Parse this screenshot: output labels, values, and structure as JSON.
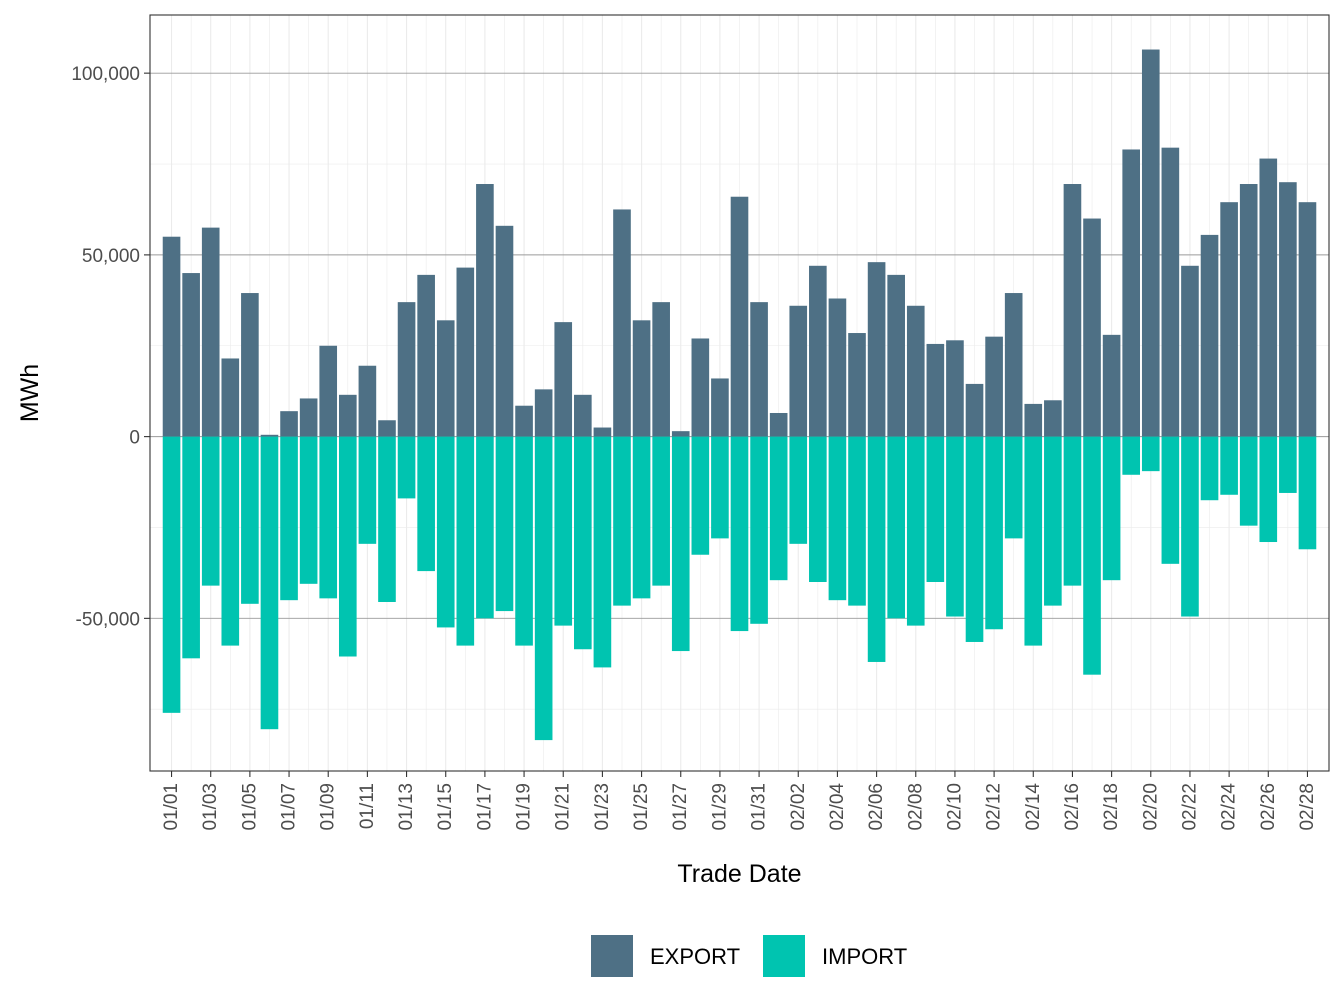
{
  "chart_data": {
    "type": "bar",
    "stacked": true,
    "xlabel": "Trade Date",
    "ylabel": "MWh",
    "ylim": [
      -92000,
      116000
    ],
    "y_ticks": [
      -50000,
      0,
      50000,
      100000
    ],
    "y_tick_labels": [
      "-50,000",
      "0",
      "50,000",
      "100,000"
    ],
    "grid": true,
    "legend_position": "bottom",
    "categories": [
      "01/01",
      "01/02",
      "01/03",
      "01/04",
      "01/05",
      "01/06",
      "01/07",
      "01/08",
      "01/09",
      "01/10",
      "01/11",
      "01/12",
      "01/13",
      "01/14",
      "01/15",
      "01/16",
      "01/17",
      "01/18",
      "01/19",
      "01/20",
      "01/21",
      "01/22",
      "01/23",
      "01/24",
      "01/25",
      "01/26",
      "01/27",
      "01/28",
      "01/29",
      "01/30",
      "01/31",
      "02/01",
      "02/02",
      "02/03",
      "02/04",
      "02/05",
      "02/06",
      "02/07",
      "02/08",
      "02/09",
      "02/10",
      "02/11",
      "02/12",
      "02/13",
      "02/14",
      "02/15",
      "02/16",
      "02/17",
      "02/18",
      "02/19",
      "02/20",
      "02/21",
      "02/22",
      "02/23",
      "02/24",
      "02/25",
      "02/26",
      "02/27",
      "02/28"
    ],
    "x_tick_labels": [
      "01/01",
      "01/03",
      "01/05",
      "01/07",
      "01/09",
      "01/11",
      "01/13",
      "01/15",
      "01/17",
      "01/19",
      "01/21",
      "01/23",
      "01/25",
      "01/27",
      "01/29",
      "01/31",
      "02/02",
      "02/04",
      "02/06",
      "02/08",
      "02/10",
      "02/12",
      "02/14",
      "02/16",
      "02/18",
      "02/20",
      "02/22",
      "02/24",
      "02/26",
      "02/28"
    ],
    "series": [
      {
        "name": "EXPORT",
        "color": "#4e7085",
        "values": [
          55000,
          45000,
          57500,
          21500,
          39500,
          500,
          7000,
          10500,
          25000,
          11500,
          19500,
          4500,
          37000,
          44500,
          32000,
          46500,
          69500,
          58000,
          8500,
          13000,
          31500,
          11500,
          2500,
          62500,
          32000,
          37000,
          1500,
          27000,
          16000,
          66000,
          37000,
          6500,
          36000,
          47000,
          38000,
          28500,
          48000,
          44500,
          36000,
          25500,
          26500,
          14500,
          27500,
          39500,
          9000,
          10000,
          69500,
          60000,
          28000,
          79000,
          106500,
          79500,
          47000,
          55500,
          64500,
          69500,
          76500,
          70000,
          64500
        ]
      },
      {
        "name": "IMPORT",
        "color": "#00c4b0",
        "values": [
          -76000,
          -61000,
          -41000,
          -57500,
          -46000,
          -80500,
          -45000,
          -40500,
          -44500,
          -60500,
          -29500,
          -45500,
          -17000,
          -37000,
          -52500,
          -57500,
          -50000,
          -48000,
          -57500,
          -83500,
          -52000,
          -58500,
          -63500,
          -46500,
          -44500,
          -41000,
          -59000,
          -32500,
          -28000,
          -53500,
          -51500,
          -39500,
          -29500,
          -40000,
          -45000,
          -46500,
          -62000,
          -50000,
          -52000,
          -40000,
          -49500,
          -56500,
          -53000,
          -28000,
          -57500,
          -46500,
          -41000,
          -65500,
          -39500,
          -10500,
          -9500,
          -35000,
          -49500,
          -17500,
          -16000,
          -24500,
          -29000,
          -15500,
          -31000
        ]
      }
    ]
  }
}
